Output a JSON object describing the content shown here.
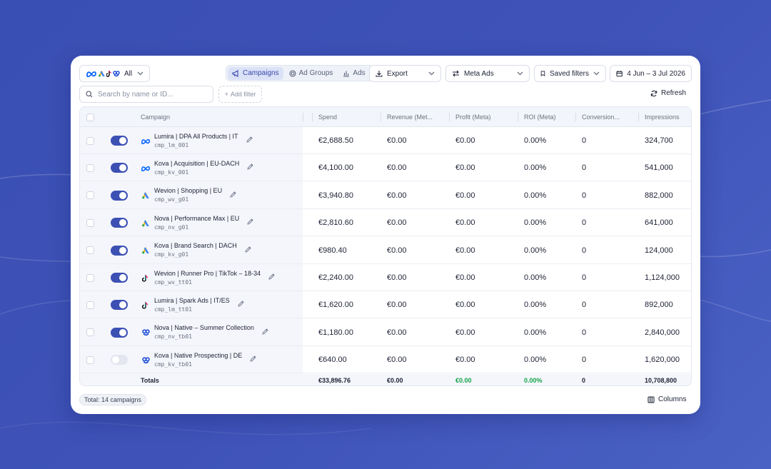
{
  "platform_filter": {
    "label": "All"
  },
  "tabs": [
    {
      "label": "Campaigns",
      "active": true
    },
    {
      "label": "Ad Groups",
      "active": false
    },
    {
      "label": "Ads",
      "active": false
    }
  ],
  "toolbar": {
    "export_label": "Export",
    "source_label": "Meta Ads",
    "saved_filters_label": "Saved filters",
    "date_range": "4 Jun – 3 Jul 2026",
    "refresh_label": "Refresh",
    "add_filter_label": "Add filter"
  },
  "search": {
    "placeholder": "Search by name or ID..."
  },
  "columns": [
    "Campaign",
    "Spend",
    "Revenue (Met...",
    "Profit (Meta)",
    "ROI (Meta)",
    "Conversion...",
    "Impressions"
  ],
  "rows": [
    {
      "enabled": true,
      "platform": "meta",
      "name": "Lumira | DPA All Products | IT",
      "id": "cmp_lm_001",
      "spend": "€2,688.50",
      "revenue": "€0.00",
      "profit": "€0.00",
      "roi": "0.00%",
      "conversions": "0",
      "impressions": "324,700"
    },
    {
      "enabled": true,
      "platform": "meta",
      "name": "Kova | Acquisition | EU-DACH",
      "id": "cmp_kv_001",
      "spend": "€4,100.00",
      "revenue": "€0.00",
      "profit": "€0.00",
      "roi": "0.00%",
      "conversions": "0",
      "impressions": "541,000"
    },
    {
      "enabled": true,
      "platform": "google",
      "name": "Wevion | Shopping | EU",
      "id": "cmp_wv_g01",
      "spend": "€3,940.80",
      "revenue": "€0.00",
      "profit": "€0.00",
      "roi": "0.00%",
      "conversions": "0",
      "impressions": "882,000"
    },
    {
      "enabled": true,
      "platform": "google",
      "name": "Nova | Performance Max | EU",
      "id": "cmp_nv_g01",
      "spend": "€2,810.60",
      "revenue": "€0.00",
      "profit": "€0.00",
      "roi": "0.00%",
      "conversions": "0",
      "impressions": "641,000"
    },
    {
      "enabled": true,
      "platform": "google",
      "name": "Kova | Brand Search | DACH",
      "id": "cmp_kv_g01",
      "spend": "€980.40",
      "revenue": "€0.00",
      "profit": "€0.00",
      "roi": "0.00%",
      "conversions": "0",
      "impressions": "124,000"
    },
    {
      "enabled": true,
      "platform": "tiktok",
      "name": "Wevion | Runner Pro | TikTok – 18-34",
      "id": "cmp_wv_tt01",
      "spend": "€2,240.00",
      "revenue": "€0.00",
      "profit": "€0.00",
      "roi": "0.00%",
      "conversions": "0",
      "impressions": "1,124,000"
    },
    {
      "enabled": true,
      "platform": "tiktok",
      "name": "Lumira | Spark Ads | IT/ES",
      "id": "cmp_lm_tt01",
      "spend": "€1,620.00",
      "revenue": "€0.00",
      "profit": "€0.00",
      "roi": "0.00%",
      "conversions": "0",
      "impressions": "892,000"
    },
    {
      "enabled": true,
      "platform": "taboola",
      "name": "Nova | Native – Summer Collection",
      "id": "cmp_nv_tb01",
      "spend": "€1,180.00",
      "revenue": "€0.00",
      "profit": "€0.00",
      "roi": "0.00%",
      "conversions": "0",
      "impressions": "2,840,000"
    },
    {
      "enabled": false,
      "platform": "taboola",
      "name": "Kova | Native Prospecting | DE",
      "id": "cmp_kv_tb01",
      "spend": "€640.00",
      "revenue": "€0.00",
      "profit": "€0.00",
      "roi": "0.00%",
      "conversions": "0",
      "impressions": "1,620,000"
    }
  ],
  "totals": {
    "label": "Totals",
    "spend": "€33,896.76",
    "revenue": "€0.00",
    "profit": "€0.00",
    "roi": "0.00%",
    "conversions": "0",
    "impressions": "10,708,800"
  },
  "footer": {
    "total_label": "Total: 14 campaigns",
    "columns_label": "Columns"
  },
  "colors": {
    "background": "#3e52b8",
    "accent": "#3c50b4",
    "positive": "#16a34a",
    "meta": "#0866ff",
    "taboola": "#1d4ed8"
  }
}
